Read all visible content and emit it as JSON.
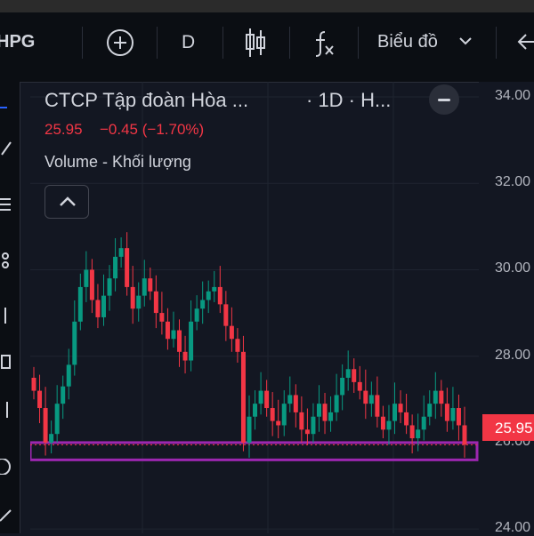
{
  "toolbar": {
    "symbol": "HPG",
    "interval": "D",
    "chart_type_label": "Biểu đồ"
  },
  "legend": {
    "title": "CTCP Tập đoàn Hòa ...",
    "interval_suffix": "· 1D · H...",
    "close": "25.95",
    "change": "−0.45 (−1.70%)",
    "volume_label": "Volume - Khối lượng"
  },
  "price_tag": "25.95",
  "colors": {
    "up": "#089981",
    "down": "#f23645",
    "zone": "#9c27b0",
    "bg": "#131722"
  },
  "chart_data": {
    "type": "candlestick",
    "y_ticks": [
      "34.00",
      "32.00",
      "30.00",
      "28.00",
      "26.00",
      "24.00"
    ],
    "y_tick_values": [
      34,
      32,
      30,
      28,
      26,
      24
    ],
    "ylim": [
      23.9,
      34.35
    ],
    "last_price": 25.95,
    "support_zone": [
      25.6,
      26.0
    ],
    "closes": [
      27.2,
      26.8,
      26.0,
      26.2,
      26.9,
      27.3,
      27.8,
      28.8,
      29.6,
      30.0,
      29.3,
      28.9,
      29.4,
      29.8,
      30.3,
      30.5,
      29.6,
      29.1,
      29.4,
      29.8,
      29.5,
      29.0,
      28.8,
      28.4,
      28.6,
      28.1,
      27.9,
      28.8,
      29.1,
      29.3,
      29.5,
      29.6,
      29.2,
      28.7,
      28.4,
      28.1,
      26.0,
      26.6,
      26.9,
      27.2,
      26.8,
      26.5,
      26.4,
      26.9,
      27.1,
      26.7,
      26.3,
      26.2,
      26.6,
      26.9,
      26.5,
      26.7,
      27.1,
      27.5,
      27.7,
      27.4,
      27.2,
      26.9,
      27.1,
      26.6,
      26.3,
      26.5,
      26.9,
      26.7,
      26.4,
      26.1,
      26.3,
      26.6,
      26.9,
      27.2,
      26.9,
      26.5,
      26.8,
      26.4,
      25.95
    ]
  }
}
